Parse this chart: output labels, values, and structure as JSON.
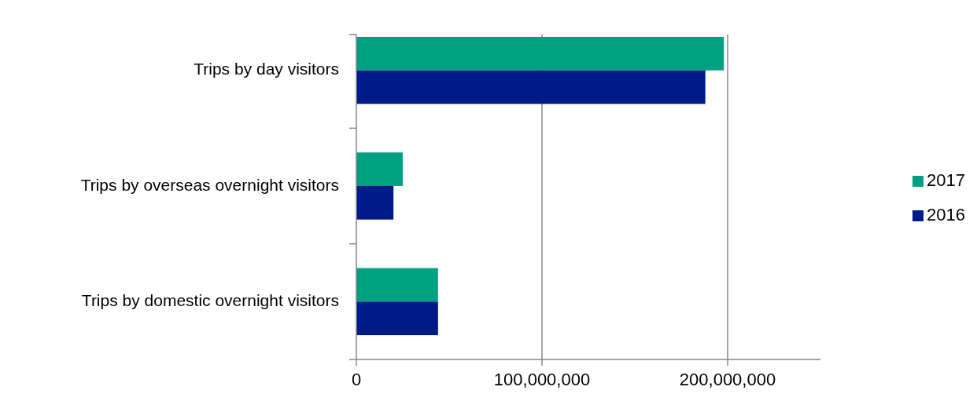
{
  "chart_data": {
    "type": "bar",
    "orientation": "horizontal",
    "categories": [
      "Trips by day visitors",
      "Trips by overseas overnight visitors",
      "Trips by domestic overnight visitors"
    ],
    "series": [
      {
        "name": "2017",
        "color": "#00a183",
        "values": [
          198000000,
          25000000,
          44000000
        ]
      },
      {
        "name": "2016",
        "color": "#001a8a",
        "values": [
          188000000,
          20000000,
          44000000
        ]
      }
    ],
    "xlim": [
      0,
      250000000
    ],
    "xticks": [
      {
        "value": 0,
        "label": "0"
      },
      {
        "value": 100000000,
        "label": "100,000,000"
      },
      {
        "value": 200000000,
        "label": "200,000,000"
      }
    ],
    "grid": "x",
    "legend": "right"
  }
}
